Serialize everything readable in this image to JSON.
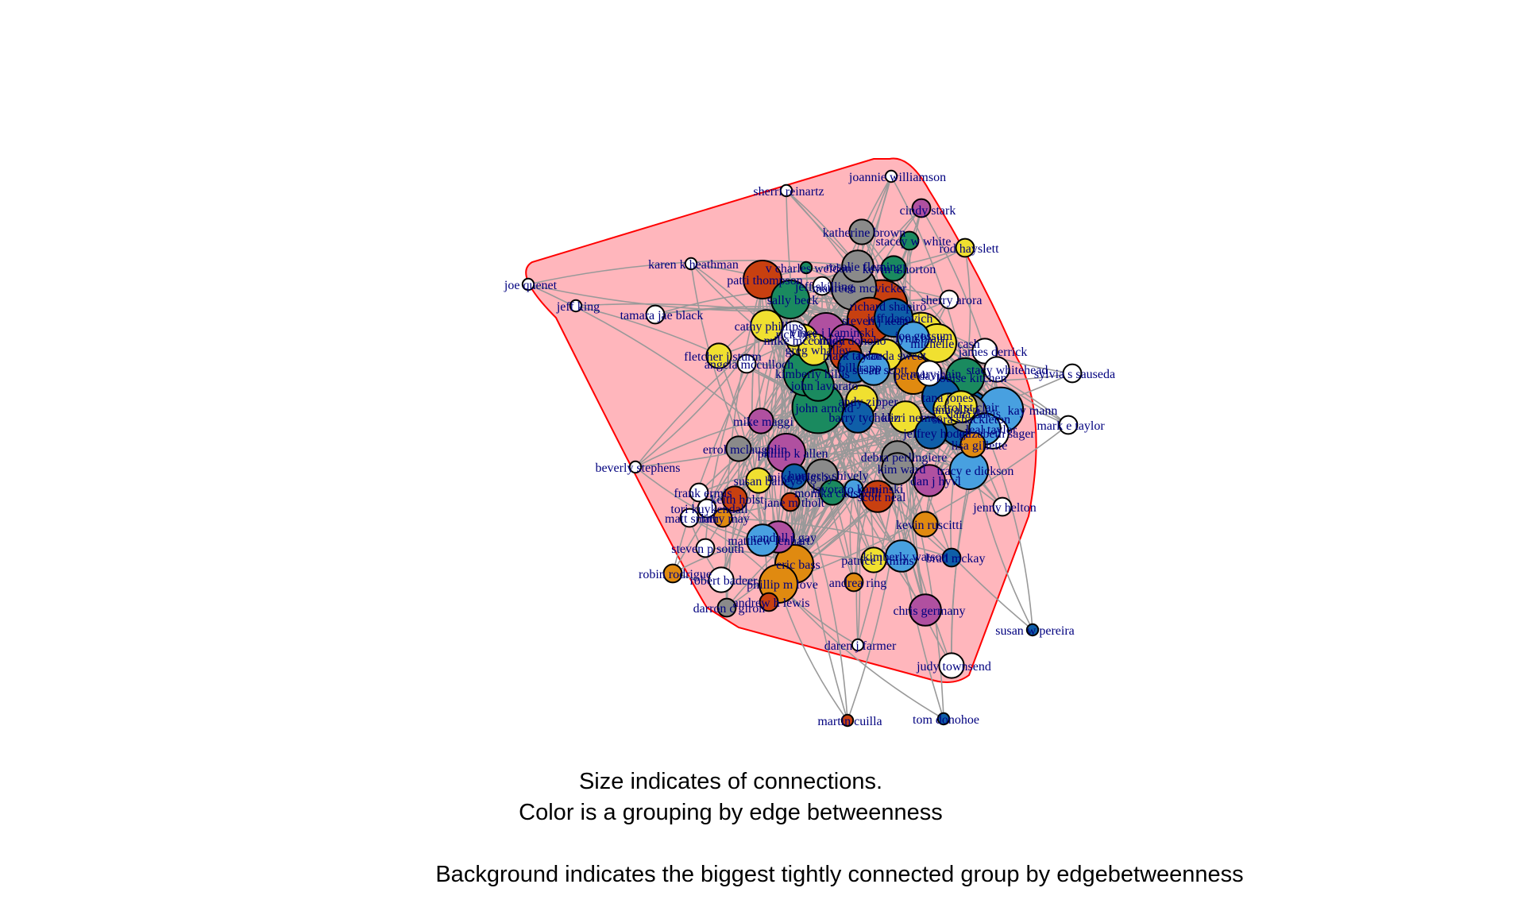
{
  "captions": {
    "line1": "Size indicates of connections.",
    "line2": "Color is a grouping by edge betweenness",
    "line3": "Background indicates the biggest tightly connected group by edgebetweenness"
  },
  "colors": {
    "hull_fill": "#ffb6bc",
    "hull_stroke": "#ff0000",
    "edge": "#999999",
    "label": "#00007f",
    "node_stroke": "#000000",
    "groups": {
      "green": "#1a8a5f",
      "orange": "#e08a10",
      "blue": "#0f5fa8",
      "yellow": "#f0e030",
      "purple": "#b050a0",
      "red": "#c84010",
      "lightblue": "#48a0e0",
      "gray": "#8a8a8a",
      "white": "#ffffff"
    }
  },
  "network": {
    "nodes": [
      {
        "name": "joannie williamson",
        "color": "white",
        "size": 1
      },
      {
        "name": "sherri reinartz",
        "color": "white",
        "size": 1
      },
      {
        "name": "cindy stark",
        "color": "purple",
        "size": 2
      },
      {
        "name": "katherine brown",
        "color": "gray",
        "size": 3
      },
      {
        "name": "stacey w white",
        "color": "green",
        "size": 2
      },
      {
        "name": "rod hayslett",
        "color": "yellow",
        "size": 2
      },
      {
        "name": "karen k heathman",
        "color": "white",
        "size": 1
      },
      {
        "name": "v charles weldon",
        "color": "green",
        "size": 1
      },
      {
        "name": "rosalie fleming",
        "color": "gray",
        "size": 4
      },
      {
        "name": "kevin a horton",
        "color": "green",
        "size": 3
      },
      {
        "name": "patti thompson",
        "color": "red",
        "size": 5
      },
      {
        "name": "jeff skilling",
        "color": "white",
        "size": 2
      },
      {
        "name": "maureen mcvicker",
        "color": "gray",
        "size": 6
      },
      {
        "name": "sherry arora",
        "color": "white",
        "size": 2
      },
      {
        "name": "joe quenet",
        "color": "white",
        "size": 1
      },
      {
        "name": "jeff king",
        "color": "white",
        "size": 1
      },
      {
        "name": "sally beck",
        "color": "green",
        "size": 5
      },
      {
        "name": "richard shapiro",
        "color": "red",
        "size": 7
      },
      {
        "name": "steven j kean",
        "color": "red",
        "size": 6
      },
      {
        "name": "tamara jae black",
        "color": "white",
        "size": 2
      },
      {
        "name": "jeff dasovich",
        "color": "blue",
        "size": 5
      },
      {
        "name": "cathy phillips",
        "color": "yellow",
        "size": 4
      },
      {
        "name": "rick buy",
        "color": "white",
        "size": 3
      },
      {
        "name": "vince j kaminski",
        "color": "purple",
        "size": 5
      },
      {
        "name": "lynn blair",
        "color": "lightblue",
        "size": 4
      },
      {
        "name": "joe gossum",
        "color": "yellow",
        "size": 6
      },
      {
        "name": "michelle cash",
        "color": "yellow",
        "size": 5
      },
      {
        "name": "mike mcconnell",
        "color": "yellow",
        "size": 4
      },
      {
        "name": "lindy donoho",
        "color": "purple",
        "size": 4
      },
      {
        "name": "greg whalley",
        "color": "yellow",
        "size": 4
      },
      {
        "name": "mark taylor",
        "color": "red",
        "size": 4
      },
      {
        "name": "twanda sweet",
        "color": "yellow",
        "size": 4
      },
      {
        "name": "james derrick",
        "color": "white",
        "size": 3
      },
      {
        "name": "fletcher j sturm",
        "color": "yellow",
        "size": 3
      },
      {
        "name": "angela mcculloch",
        "color": "white",
        "size": 2
      },
      {
        "name": "kimberly hillis",
        "color": "green",
        "size": 6
      },
      {
        "name": "john lavorato",
        "color": "green",
        "size": 4
      },
      {
        "name": "bill rapp",
        "color": "blue",
        "size": 4
      },
      {
        "name": "susan scott",
        "color": "lightblue",
        "size": 4
      },
      {
        "name": "pete davis",
        "color": "orange",
        "size": 5
      },
      {
        "name": "louise kitchen",
        "color": "green",
        "size": 5
      },
      {
        "name": "mary hain",
        "color": "white",
        "size": 3
      },
      {
        "name": "stacy whitehead",
        "color": "white",
        "size": 3
      },
      {
        "name": "sylvia s sauseda",
        "color": "white",
        "size": 2
      },
      {
        "name": "andy zipper",
        "color": "yellow",
        "size": 4
      },
      {
        "name": "john arnold",
        "color": "green",
        "size": 7
      },
      {
        "name": "tana jones",
        "color": "blue",
        "size": 5
      },
      {
        "name": "ann allen",
        "color": "yellow",
        "size": 4
      },
      {
        "name": "dana davis",
        "color": "gray",
        "size": 5
      },
      {
        "name": "sara shackleton",
        "color": "blue",
        "size": 8
      },
      {
        "name": "kay mann",
        "color": "lightblue",
        "size": 6
      },
      {
        "name": "mark e taylor",
        "color": "white",
        "size": 2
      },
      {
        "name": "mike maggi",
        "color": "purple",
        "size": 3
      },
      {
        "name": "barry tycholiz",
        "color": "blue",
        "size": 4
      },
      {
        "name": "kerri nemec",
        "color": "yellow",
        "size": 4
      },
      {
        "name": "jeffrey hodge",
        "color": "blue",
        "size": 4
      },
      {
        "name": "elizabeth sager",
        "color": "white",
        "size": 4
      },
      {
        "name": "carol st clair",
        "color": "yellow",
        "size": 4
      },
      {
        "name": "leal taylor",
        "color": "lightblue",
        "size": 4
      },
      {
        "name": "lisa gillette",
        "color": "orange",
        "size": 3
      },
      {
        "name": "matt smith",
        "color": "white",
        "size": 2
      },
      {
        "name": "errol mclaughlin",
        "color": "gray",
        "size": 3
      },
      {
        "name": "phillip k allen",
        "color": "purple",
        "size": 5
      },
      {
        "name": "debra perlingiere",
        "color": "gray",
        "size": 4
      },
      {
        "name": "kim ward",
        "color": "gray",
        "size": 4
      },
      {
        "name": "tracy e dickson",
        "color": "lightblue",
        "size": 5
      },
      {
        "name": "dan j hyvl",
        "color": "purple",
        "size": 4
      },
      {
        "name": "beverly stephens",
        "color": "white",
        "size": 1
      },
      {
        "name": "susan bailey",
        "color": "yellow",
        "size": 3
      },
      {
        "name": "mike grigsby",
        "color": "blue",
        "size": 3
      },
      {
        "name": "hunter s shively",
        "color": "gray",
        "size": 4
      },
      {
        "name": "frank ermis",
        "color": "white",
        "size": 2
      },
      {
        "name": "keith holst",
        "color": "red",
        "size": 3
      },
      {
        "name": "jane m tholt",
        "color": "red",
        "size": 2
      },
      {
        "name": "monika causholli",
        "color": "green",
        "size": 3
      },
      {
        "name": "scott neal",
        "color": "red",
        "size": 4
      },
      {
        "name": "lavorato kaminski",
        "color": "lightblue",
        "size": 2
      },
      {
        "name": "tori kuykendall",
        "color": "white",
        "size": 2
      },
      {
        "name": "larry may",
        "color": "orange",
        "size": 2
      },
      {
        "name": "jenny helton",
        "color": "white",
        "size": 2
      },
      {
        "name": "kevin ruscitti",
        "color": "orange",
        "size": 3
      },
      {
        "name": "randall l gay",
        "color": "purple",
        "size": 4
      },
      {
        "name": "matthew lenhart",
        "color": "lightblue",
        "size": 4
      },
      {
        "name": "steven p south",
        "color": "white",
        "size": 2
      },
      {
        "name": "eric bass",
        "color": "orange",
        "size": 5
      },
      {
        "name": "kimberly watson",
        "color": "lightblue",
        "size": 4
      },
      {
        "name": "patrice l mims",
        "color": "yellow",
        "size": 3
      },
      {
        "name": "brad mckay",
        "color": "blue",
        "size": 2
      },
      {
        "name": "robin rodrigue",
        "color": "orange",
        "size": 2
      },
      {
        "name": "robert badeer",
        "color": "white",
        "size": 3
      },
      {
        "name": "phillip m love",
        "color": "orange",
        "size": 5
      },
      {
        "name": "andrea ring",
        "color": "orange",
        "size": 2
      },
      {
        "name": "andrew h lewis",
        "color": "red",
        "size": 2
      },
      {
        "name": "darron c giron",
        "color": "gray",
        "size": 2
      },
      {
        "name": "chris germany",
        "color": "purple",
        "size": 4
      },
      {
        "name": "susan w pereira",
        "color": "blue",
        "size": 1
      },
      {
        "name": "daren j farmer",
        "color": "white",
        "size": 1
      },
      {
        "name": "judy townsend",
        "color": "white",
        "size": 3
      },
      {
        "name": "martin cuilla",
        "color": "red",
        "size": 1
      },
      {
        "name": "tom donohoe",
        "color": "blue",
        "size": 1
      }
    ]
  }
}
